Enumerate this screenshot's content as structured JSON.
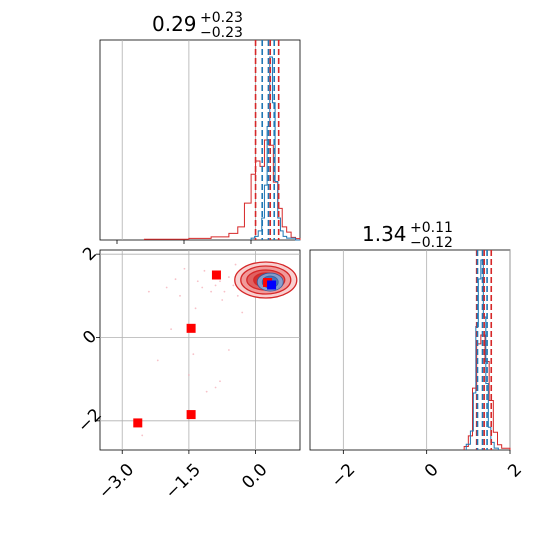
{
  "chart_data": [
    {
      "panel": "marginal-1",
      "type": "histogram",
      "title_value": "0.29",
      "title_upper": "+0.23",
      "title_lower": "−0.23",
      "xlim": [
        -3.5,
        1.0
      ],
      "grid": true,
      "colors": {
        "blue": "#1f77b4",
        "red": "#d62728"
      },
      "blue_quantiles": [
        0.15,
        0.29,
        0.42
      ],
      "red_quantiles": [
        0.0,
        0.33,
        0.52
      ],
      "blue_hist": {
        "edges": [
          -0.1,
          -0.02,
          0.06,
          0.14,
          0.2,
          0.26,
          0.32,
          0.38,
          0.44,
          0.5,
          0.56,
          0.62,
          0.7,
          0.8,
          0.9,
          1.0
        ],
        "counts": [
          0.01,
          0.02,
          0.05,
          0.12,
          0.3,
          0.62,
          1.0,
          0.75,
          0.32,
          0.12,
          0.05,
          0.02,
          0.01,
          0.01,
          0.0
        ]
      },
      "red_hist": {
        "edges": [
          -2.5,
          -1.5,
          -1.0,
          -0.6,
          -0.4,
          -0.25,
          -0.1,
          0.0,
          0.1,
          0.2,
          0.3,
          0.4,
          0.5,
          0.6,
          0.7,
          0.8,
          0.9,
          1.0
        ],
        "counts": [
          0.003,
          0.006,
          0.012,
          0.025,
          0.05,
          0.14,
          0.25,
          0.3,
          0.28,
          0.38,
          0.36,
          0.22,
          0.12,
          0.05,
          0.03,
          0.01,
          0.005
        ]
      }
    },
    {
      "panel": "marginal-2",
      "type": "histogram",
      "title_value": "1.34",
      "title_upper": "+0.11",
      "title_lower": "−0.12",
      "xlim": [
        -2.8,
        2.0
      ],
      "xticks": [
        -2,
        0,
        2
      ],
      "xtick_labels": [
        "−2",
        "0",
        "2"
      ],
      "grid": true,
      "blue_quantiles": [
        1.22,
        1.34,
        1.45
      ],
      "red_quantiles": [
        1.2,
        1.38,
        1.55
      ],
      "blue_hist": {
        "edges": [
          0.95,
          1.05,
          1.12,
          1.18,
          1.24,
          1.3,
          1.36,
          1.42,
          1.48,
          1.54,
          1.62,
          1.72
        ],
        "counts": [
          0.03,
          0.1,
          0.3,
          0.65,
          0.9,
          1.0,
          0.7,
          0.35,
          0.12,
          0.04,
          0.01
        ]
      },
      "red_hist": {
        "edges": [
          0.9,
          1.0,
          1.1,
          1.2,
          1.3,
          1.4,
          1.5,
          1.6,
          1.7,
          1.8,
          2.0
        ],
        "counts": [
          0.02,
          0.08,
          0.35,
          0.6,
          0.65,
          0.5,
          0.28,
          0.1,
          0.03,
          0.01
        ]
      }
    },
    {
      "panel": "joint",
      "type": "scatter",
      "xlim": [
        -3.5,
        1.0
      ],
      "ylim": [
        -2.7,
        2.1
      ],
      "xticks": [
        -3.0,
        -1.5,
        0.0
      ],
      "xtick_labels": [
        "−3.0",
        "−1.5",
        "0.0"
      ],
      "yticks": [
        -2,
        0,
        2
      ],
      "ytick_labels": [
        "−2",
        "0",
        "2"
      ],
      "grid": true,
      "markers": [
        {
          "x": -2.65,
          "y": -2.05,
          "color": "#ff0000"
        },
        {
          "x": -1.45,
          "y": -1.85,
          "color": "#ff0000"
        },
        {
          "x": -1.45,
          "y": 0.22,
          "color": "#ff0000"
        },
        {
          "x": -0.88,
          "y": 1.5,
          "color": "#ff0000"
        },
        {
          "x": 0.27,
          "y": 1.32,
          "color": "#ff0000"
        },
        {
          "x": 0.36,
          "y": 1.26,
          "color": "#0000ff"
        }
      ],
      "red_contour_center": [
        0.23,
        1.38
      ],
      "blue_contour_center": [
        0.33,
        1.33
      ],
      "scatter_points": [
        [
          -2.55,
          -2.35
        ],
        [
          -2.2,
          -0.55
        ],
        [
          -2.0,
          1.2
        ],
        [
          -1.8,
          1.4
        ],
        [
          -1.6,
          1.65
        ],
        [
          -1.2,
          1.2
        ],
        [
          -1.0,
          1.1
        ],
        [
          -0.9,
          1.25
        ],
        [
          -0.8,
          1.35
        ],
        [
          -0.7,
          1.1
        ],
        [
          -0.6,
          1.45
        ],
        [
          -0.5,
          1.25
        ],
        [
          -0.4,
          1.0
        ],
        [
          -0.3,
          1.4
        ],
        [
          -0.2,
          1.2
        ],
        [
          -0.1,
          1.55
        ],
        [
          -1.4,
          -0.4
        ],
        [
          -1.5,
          -0.9
        ],
        [
          -1.1,
          -1.3
        ],
        [
          -0.9,
          -1.2
        ],
        [
          -0.8,
          -1.05
        ],
        [
          -0.6,
          -0.3
        ],
        [
          -1.35,
          0.7
        ],
        [
          -2.4,
          1.1
        ],
        [
          -1.9,
          0.2
        ],
        [
          -0.3,
          0.6
        ],
        [
          -0.2,
          1.7
        ],
        [
          -0.45,
          1.75
        ],
        [
          -1.15,
          1.6
        ],
        [
          -1.7,
          1.0
        ],
        [
          -1.3,
          1.35
        ],
        [
          -0.75,
          0.9
        ]
      ]
    }
  ]
}
